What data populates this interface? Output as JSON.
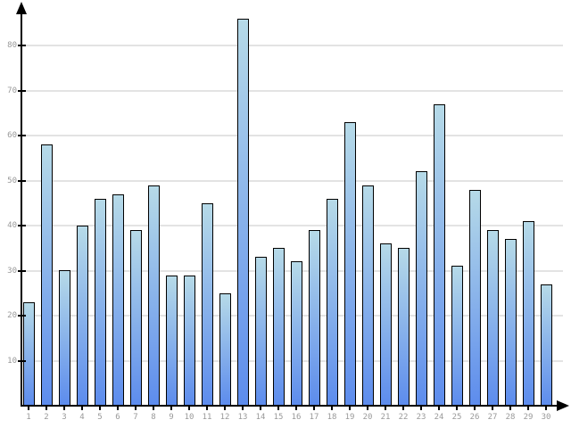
{
  "chart_data": {
    "type": "bar",
    "title": "",
    "xlabel": "",
    "ylabel": "",
    "x": [
      "1",
      "2",
      "3",
      "4",
      "5",
      "6",
      "7",
      "8",
      "9",
      "10",
      "11",
      "12",
      "13",
      "14",
      "15",
      "16",
      "17",
      "18",
      "19",
      "20",
      "21",
      "22",
      "23",
      "24",
      "25",
      "26",
      "27",
      "28",
      "29",
      "30"
    ],
    "values": [
      23,
      58,
      30,
      40,
      46,
      47,
      39,
      49,
      29,
      29,
      45,
      25,
      86,
      33,
      35,
      32,
      39,
      46,
      63,
      49,
      36,
      35,
      52,
      67,
      31,
      48,
      39,
      37,
      41,
      27
    ],
    "yticks": [
      10,
      20,
      30,
      40,
      50,
      60,
      70,
      80
    ],
    "ylim": [
      0,
      88
    ],
    "grid": true,
    "legend": "none",
    "colors": {
      "bar_gradient_top": "#b6dae8",
      "bar_gradient_bottom": "#5d8ced",
      "bar_border": "#000000",
      "gridline": "#e3e3e3",
      "axis": "#000000",
      "tick_label": "#999999",
      "background": "#ffffff"
    }
  }
}
